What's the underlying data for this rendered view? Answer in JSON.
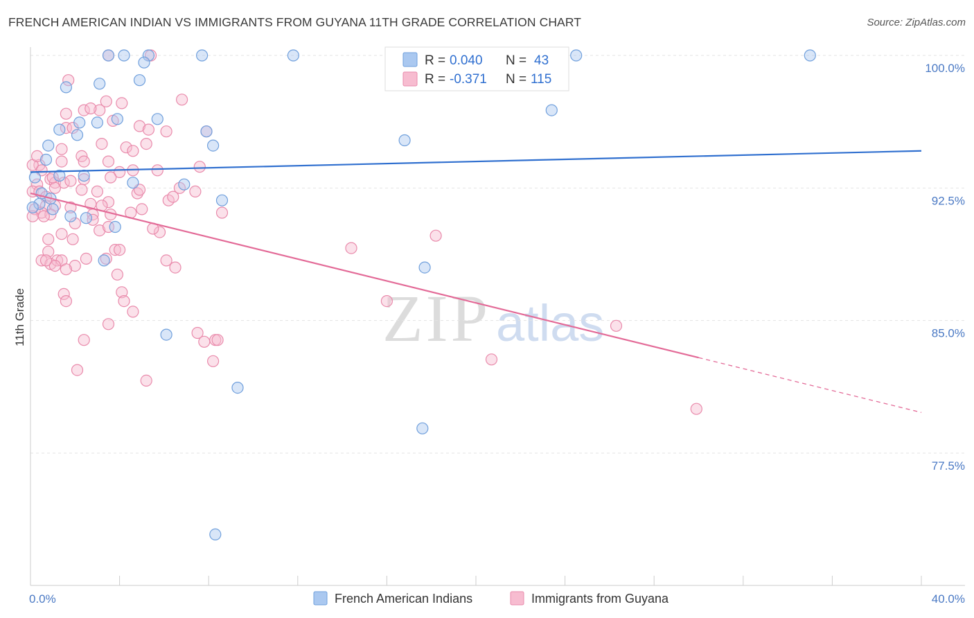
{
  "title": "FRENCH AMERICAN INDIAN VS IMMIGRANTS FROM GUYANA 11TH GRADE CORRELATION CHART",
  "source": "Source: ZipAtlas.com",
  "watermark": {
    "zip": "ZIP",
    "atlas": "atlas"
  },
  "legend": {
    "r_label": "R =",
    "n_label": "N =",
    "blue": {
      "r": "0.040",
      "n": "43"
    },
    "pink": {
      "r": "-0.371",
      "n": "115"
    }
  },
  "colors": {
    "blue_fill": "#aac8f0",
    "blue_stroke": "#6f9fdc",
    "blue_line": "#2f6fcf",
    "pink_fill": "#f7bcd0",
    "pink_stroke": "#e98aab",
    "pink_line": "#e36a97",
    "tick_text": "#4a79c4"
  },
  "chart_data": {
    "type": "scatter",
    "title": "FRENCH AMERICAN INDIAN VS IMMIGRANTS FROM GUYANA 11TH GRADE CORRELATION CHART",
    "xlabel": "",
    "ylabel": "11th Grade",
    "xlim": [
      0,
      40
    ],
    "ylim": [
      71.5,
      100.5
    ],
    "x_tick_labels": [
      "0.0%",
      "40.0%"
    ],
    "y_ticks": [
      77.5,
      85.0,
      92.5,
      100.0
    ],
    "y_tick_labels": [
      "77.5%",
      "85.0%",
      "92.5%",
      "100.0%"
    ],
    "grid": true,
    "series": [
      {
        "name": "French American Indians",
        "color": "#6f9fdc",
        "trend": {
          "x0": 0.0,
          "y0": 93.4,
          "x1": 40.0,
          "y1": 94.6
        },
        "points": [
          [
            3.5,
            100
          ],
          [
            4.2,
            100
          ],
          [
            5.3,
            100
          ],
          [
            7.7,
            100
          ],
          [
            11.8,
            100
          ],
          [
            24.5,
            100
          ],
          [
            35,
            100
          ],
          [
            5.1,
            99.6
          ],
          [
            4.9,
            98.6
          ],
          [
            1.6,
            98.2
          ],
          [
            3.1,
            98.4
          ],
          [
            3.9,
            96.4
          ],
          [
            5.7,
            96.4
          ],
          [
            3,
            96.2
          ],
          [
            2.2,
            96.2
          ],
          [
            1.3,
            95.8
          ],
          [
            2.1,
            95.5
          ],
          [
            0.8,
            94.9
          ],
          [
            8.2,
            94.9
          ],
          [
            16.8,
            95.2
          ],
          [
            23.4,
            96.9
          ],
          [
            0.7,
            94.1
          ],
          [
            1.3,
            93.2
          ],
          [
            2.4,
            93.2
          ],
          [
            0.2,
            93.1
          ],
          [
            4.6,
            92.8
          ],
          [
            6.9,
            92.7
          ],
          [
            0.5,
            92.2
          ],
          [
            0.9,
            91.9
          ],
          [
            8.6,
            91.8
          ],
          [
            0.4,
            91.6
          ],
          [
            1.0,
            91.3
          ],
          [
            0.1,
            91.4
          ],
          [
            1.8,
            90.9
          ],
          [
            2.5,
            90.8
          ],
          [
            3.8,
            90.3
          ],
          [
            3.3,
            88.4
          ],
          [
            17.7,
            88.0
          ],
          [
            6.1,
            84.2
          ],
          [
            9.3,
            81.2
          ],
          [
            17.6,
            78.9
          ],
          [
            8.3,
            72.9
          ],
          [
            7.9,
            95.7
          ]
        ]
      },
      {
        "name": "Immigrants from Guyana",
        "color": "#e98aab",
        "trend": {
          "x0": 0.0,
          "y0": 92.2,
          "x1": 30.0,
          "y1": 82.9,
          "dash_to_x": 40.0,
          "dash_to_y": 79.8
        },
        "points": [
          [
            3.5,
            100
          ],
          [
            5.4,
            100
          ],
          [
            1.7,
            98.6
          ],
          [
            3.4,
            97.4
          ],
          [
            4.1,
            97.3
          ],
          [
            6.8,
            97.5
          ],
          [
            1.6,
            96.7
          ],
          [
            2.4,
            96.9
          ],
          [
            3.1,
            96.9
          ],
          [
            3.7,
            96.3
          ],
          [
            1.6,
            95.9
          ],
          [
            1.9,
            95.9
          ],
          [
            4.9,
            96.0
          ],
          [
            5.3,
            95.8
          ],
          [
            6.1,
            95.7
          ],
          [
            7.9,
            95.7
          ],
          [
            2.3,
            94.3
          ],
          [
            3.2,
            95.0
          ],
          [
            4.3,
            94.8
          ],
          [
            4.6,
            94.6
          ],
          [
            1.4,
            94.7
          ],
          [
            1.4,
            94.0
          ],
          [
            2.4,
            94.0
          ],
          [
            3.5,
            94.0
          ],
          [
            4.0,
            93.4
          ],
          [
            0.4,
            93.8
          ],
          [
            0.1,
            93.8
          ],
          [
            0.5,
            93.5
          ],
          [
            0.9,
            93.0
          ],
          [
            1.1,
            92.8
          ],
          [
            1.5,
            92.8
          ],
          [
            1.8,
            92.9
          ],
          [
            2.4,
            93.0
          ],
          [
            3.0,
            92.3
          ],
          [
            4.8,
            92.2
          ],
          [
            7.6,
            93.7
          ],
          [
            0.3,
            92.7
          ],
          [
            1.1,
            92.5
          ],
          [
            2.3,
            92.4
          ],
          [
            4.9,
            92.4
          ],
          [
            6.7,
            92.5
          ],
          [
            7.4,
            92.3
          ],
          [
            0.1,
            92.3
          ],
          [
            0.4,
            92.3
          ],
          [
            0.7,
            92.0
          ],
          [
            3.5,
            91.7
          ],
          [
            6.2,
            91.8
          ],
          [
            0.7,
            91.5
          ],
          [
            1.1,
            91.5
          ],
          [
            1.8,
            91.4
          ],
          [
            2.7,
            91.6
          ],
          [
            3.2,
            91.5
          ],
          [
            0.2,
            91.3
          ],
          [
            0.5,
            91.1
          ],
          [
            0.9,
            91.0
          ],
          [
            2.8,
            91.0
          ],
          [
            3.6,
            91.0
          ],
          [
            4.5,
            91.1
          ],
          [
            5.0,
            91.3
          ],
          [
            8.6,
            91.1
          ],
          [
            0.1,
            90.9
          ],
          [
            0.6,
            90.9
          ],
          [
            2.8,
            90.7
          ],
          [
            3.1,
            90.1
          ],
          [
            3.5,
            90.3
          ],
          [
            5.8,
            90.0
          ],
          [
            1.4,
            89.9
          ],
          [
            0.8,
            89.6
          ],
          [
            1.9,
            89.6
          ],
          [
            3.8,
            89.0
          ],
          [
            14.4,
            89.1
          ],
          [
            18.2,
            89.8
          ],
          [
            0.8,
            88.9
          ],
          [
            0.5,
            88.4
          ],
          [
            0.9,
            88.2
          ],
          [
            1.2,
            88.4
          ],
          [
            1.4,
            88.4
          ],
          [
            1.1,
            88.1
          ],
          [
            2.0,
            88.1
          ],
          [
            0.7,
            88.4
          ],
          [
            1.6,
            87.9
          ],
          [
            2.5,
            88.5
          ],
          [
            3.4,
            88.5
          ],
          [
            6.1,
            88.4
          ],
          [
            6.5,
            88.0
          ],
          [
            3.9,
            87.6
          ],
          [
            1.5,
            86.5
          ],
          [
            1.6,
            86.1
          ],
          [
            4.1,
            86.6
          ],
          [
            4.2,
            86.1
          ],
          [
            4.6,
            85.5
          ],
          [
            16.0,
            86.1
          ],
          [
            3.5,
            84.8
          ],
          [
            2.4,
            83.9
          ],
          [
            7.5,
            84.3
          ],
          [
            7.8,
            83.8
          ],
          [
            8.3,
            83.9
          ],
          [
            8.4,
            83.9
          ],
          [
            26.3,
            84.7
          ],
          [
            2.1,
            82.2
          ],
          [
            5.2,
            81.6
          ],
          [
            8.2,
            82.7
          ],
          [
            20.7,
            82.8
          ],
          [
            29.9,
            80.0
          ],
          [
            2.7,
            97.0
          ],
          [
            5.2,
            95.0
          ],
          [
            6.4,
            92.0
          ],
          [
            4.0,
            89.0
          ],
          [
            3.6,
            93.1
          ],
          [
            4.6,
            93.5
          ],
          [
            5.7,
            93.5
          ],
          [
            1.0,
            93.1
          ],
          [
            0.3,
            94.3
          ],
          [
            5.5,
            90.2
          ],
          [
            2.0,
            90.5
          ]
        ]
      }
    ]
  }
}
